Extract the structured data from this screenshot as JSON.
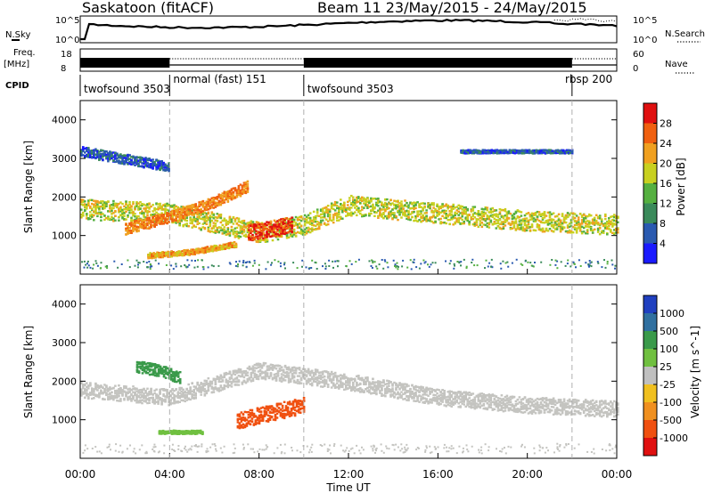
{
  "header": {
    "station": "Saskatoon (fitACF)",
    "beam_dates": "Beam 11 23/May/2015 - 24/May/2015"
  },
  "left_labels": {
    "nsky": "N.Sky",
    "freq": "Freq.",
    "freq_unit": "[MHz]",
    "cpid": "CPID"
  },
  "right_labels": {
    "nsearch": "N.Search",
    "nave": "Nave"
  },
  "noise_axis": {
    "top": "10^5",
    "bottom": "10^0"
  },
  "freq_axis": {
    "top": "18",
    "bottom": "8"
  },
  "nave_axis": {
    "top": "60",
    "bottom": "0"
  },
  "cpid_segments": [
    {
      "label": "twofsound 3503",
      "start_hr": 0,
      "end_hr": 4
    },
    {
      "label": "normal (fast) 151",
      "start_hr": 4,
      "end_hr": 10
    },
    {
      "label": "twofsound 3503",
      "start_hr": 10,
      "end_hr": 22
    },
    {
      "label": "rbsp 200",
      "start_hr": 22,
      "end_hr": 24
    }
  ],
  "x_axis": {
    "label": "Time UT",
    "ticks": [
      "00:00",
      "04:00",
      "08:00",
      "12:00",
      "16:00",
      "20:00",
      "00:00"
    ]
  },
  "power_panel": {
    "ylabel": "Slant Range [km]",
    "yticks": [
      "1000",
      "2000",
      "3000",
      "4000"
    ],
    "colorbar_label": "Power [dB]",
    "colorbar_ticks": [
      "4",
      "8",
      "12",
      "16",
      "20",
      "24",
      "28"
    ],
    "colors": [
      "#1a1aff",
      "#2a5ab0",
      "#3a8a5a",
      "#55b040",
      "#c8d020",
      "#f0a020",
      "#f06010",
      "#e01010"
    ]
  },
  "velocity_panel": {
    "ylabel": "Slant Range [km]",
    "yticks": [
      "1000",
      "2000",
      "3000",
      "4000"
    ],
    "colorbar_label": "Velocity [m s^-1]",
    "colorbar_ticks": [
      "1000",
      "500",
      "100",
      "25",
      "-25",
      "-100",
      "-500",
      "-1000"
    ],
    "colors": [
      "#2040c0",
      "#3070a0",
      "#3a9a4a",
      "#70c040",
      "#c0c0c0",
      "#f0c020",
      "#f09020",
      "#f05010",
      "#e01010"
    ]
  },
  "chart_data": [
    {
      "type": "heatmap",
      "title": "Saskatoon (fitACF) Beam 11 23/May/2015 - 24/May/2015",
      "xlabel": "Time UT",
      "ylabel": "Slant Range [km]",
      "xlim": [
        0,
        24
      ],
      "ylim": [
        0,
        4500
      ],
      "colorbar": "Power [dB]",
      "clim": [
        0,
        30
      ],
      "features": [
        {
          "name": "main band",
          "x": [
            0,
            4,
            8,
            10,
            12,
            16,
            20,
            24
          ],
          "y": [
            1700,
            1600,
            1100,
            1300,
            1800,
            1600,
            1400,
            1300
          ],
          "value": 18
        },
        {
          "name": "rising band",
          "x": [
            2,
            4,
            6,
            7.5
          ],
          "y": [
            1200,
            1500,
            1900,
            2300
          ],
          "value": 24
        },
        {
          "name": "lower band",
          "x": [
            3,
            5,
            7
          ],
          "y": [
            500,
            600,
            800
          ],
          "value": 22
        },
        {
          "name": "intense patch",
          "x": [
            7.5,
            8.5,
            9.5
          ],
          "y": [
            1100,
            1200,
            1300
          ],
          "value": 28
        },
        {
          "name": "upper band",
          "x": [
            0,
            2,
            4
          ],
          "y": [
            3200,
            3000,
            2800
          ],
          "value": 6
        },
        {
          "name": "upper band late",
          "x": [
            17,
            20,
            22
          ],
          "y": [
            3200,
            3200,
            3200
          ],
          "value": 6
        }
      ]
    },
    {
      "type": "heatmap",
      "xlabel": "Time UT",
      "ylabel": "Slant Range [km]",
      "xlim": [
        0,
        24
      ],
      "ylim": [
        0,
        4500
      ],
      "colorbar": "Velocity [m s^-1]",
      "clim": [
        -1000,
        1000
      ],
      "features": [
        {
          "name": "ground scatter band",
          "x": [
            0,
            4,
            8,
            12,
            16,
            20,
            24
          ],
          "y": [
            1800,
            1600,
            2300,
            2000,
            1600,
            1400,
            1300
          ],
          "value": 0
        },
        {
          "name": "negative velocity patch",
          "x": [
            7,
            8.5,
            10
          ],
          "y": [
            1000,
            1200,
            1400
          ],
          "value": -300
        },
        {
          "name": "positive velocity patch",
          "x": [
            2.5,
            3.5,
            4.5
          ],
          "y": [
            2400,
            2300,
            2100
          ],
          "value": 120
        },
        {
          "name": "lower green strip",
          "x": [
            3.5,
            4.5,
            5.5
          ],
          "y": [
            700,
            700,
            700
          ],
          "value": 60
        }
      ]
    }
  ]
}
